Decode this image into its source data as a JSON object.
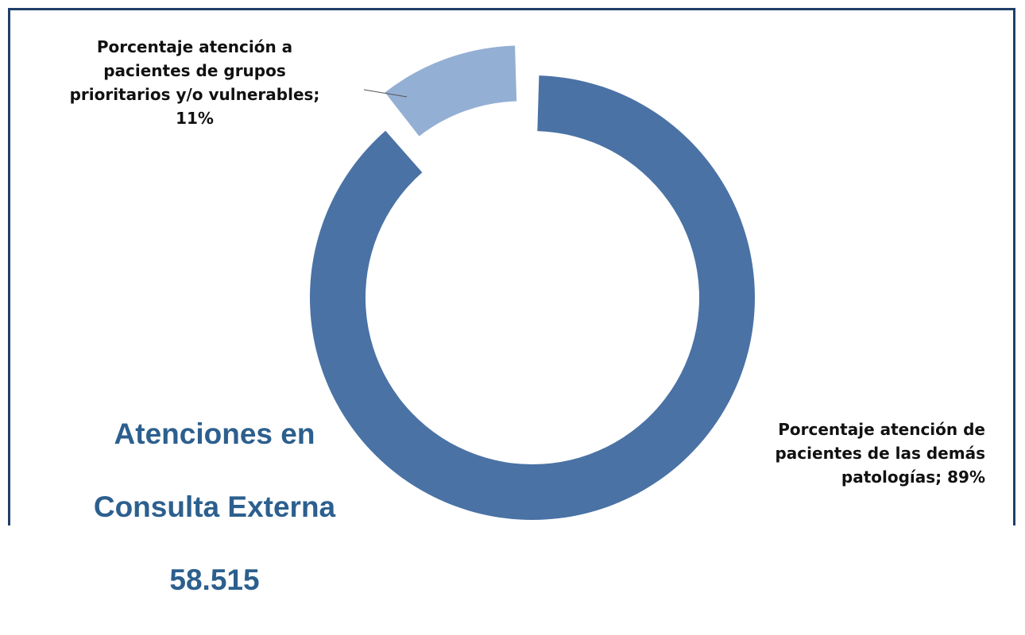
{
  "chart_data": {
    "type": "pie",
    "variant": "donut",
    "slices": [
      {
        "label": "Porcentaje atención de pacientes de las demás patologías",
        "label_lines": [
          "Porcentaje atención de",
          "pacientes de las demás",
          "patologías; 89%"
        ],
        "value": 89,
        "color": "#4a72a5"
      },
      {
        "label": "Porcentaje atención a pacientes de grupos prioritarios y/o vulnerables",
        "label_lines": [
          "Porcentaje atención a",
          "pacientes de grupos",
          "prioritarios y/o vulnerables;",
          "11%"
        ],
        "value": 11,
        "color": "#94afd4",
        "exploded": true
      }
    ],
    "caption": {
      "line1": "Atenciones en",
      "line2": "Consulta Externa",
      "line3": "58.515"
    }
  }
}
